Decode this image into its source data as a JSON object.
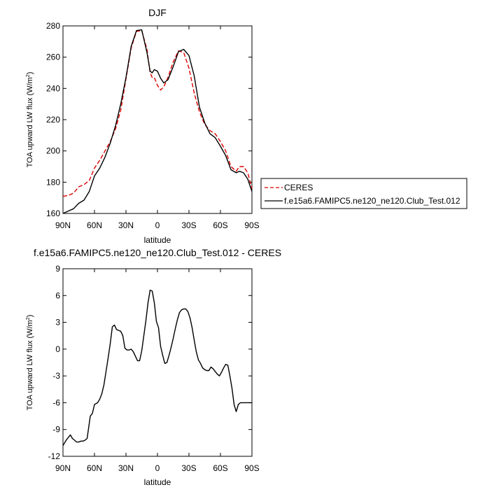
{
  "chart_data": [
    {
      "type": "line",
      "title": "DJF",
      "xlabel": "latitude",
      "ylabel": "TOA upward LW flux (W/m²)",
      "ylabel_main": "TOA upward LW flux (W/m",
      "ylabel_sup": "2",
      "ylabel_end": ")",
      "xlim": [
        90,
        -90
      ],
      "ylim": [
        160,
        280
      ],
      "xticks": [
        90,
        60,
        30,
        0,
        -30,
        -60,
        -90
      ],
      "xtick_labels": [
        "90N",
        "60N",
        "30N",
        "0",
        "30S",
        "60S",
        "90S"
      ],
      "yticks": [
        160,
        180,
        200,
        220,
        240,
        260,
        280
      ],
      "ytick_labels": [
        "160",
        "180",
        "200",
        "220",
        "240",
        "260",
        "280"
      ],
      "grid": false,
      "legend_position": "outside-right",
      "series": [
        {
          "name": "CERES",
          "color": "#dd0000",
          "style": "dashed",
          "x": [
            90,
            85,
            80,
            75,
            70,
            65,
            60,
            55,
            50,
            45,
            40,
            35,
            30,
            25,
            20,
            15,
            10,
            7,
            5,
            3,
            0,
            -3,
            -6,
            -10,
            -15,
            -20,
            -25,
            -30,
            -35,
            -40,
            -45,
            -50,
            -55,
            -60,
            -65,
            -70,
            -75,
            -78,
            -82,
            -86,
            -90
          ],
          "values": [
            171,
            171.5,
            173,
            177,
            178.5,
            181,
            189,
            194,
            200,
            206,
            214,
            226,
            246,
            266,
            276.5,
            277,
            265,
            250,
            247,
            247,
            242,
            239,
            241,
            247,
            257,
            264,
            263,
            253,
            237,
            225,
            217,
            213,
            211,
            206,
            200,
            190,
            187,
            190,
            190,
            186,
            176
          ]
        },
        {
          "name": "f.e15a6.FAMIPC5.ne120_ne120.Club_Test.012",
          "color": "#000000",
          "style": "solid",
          "x": [
            90,
            85,
            80,
            75,
            70,
            65,
            60,
            55,
            50,
            45,
            40,
            35,
            30,
            25,
            20,
            15,
            10,
            7,
            5,
            3,
            0,
            -3,
            -6,
            -10,
            -15,
            -20,
            -25,
            -30,
            -35,
            -40,
            -45,
            -50,
            -55,
            -60,
            -65,
            -70,
            -75,
            -78,
            -82,
            -86,
            -90
          ],
          "values": [
            160,
            161.5,
            163,
            166.5,
            168.5,
            174,
            184,
            189,
            196,
            205,
            216,
            230,
            247,
            267,
            277,
            277.5,
            263,
            251,
            250,
            252,
            251,
            246.5,
            243.5,
            245.5,
            254,
            263.5,
            265,
            261,
            248,
            228,
            218,
            211,
            208.5,
            203,
            197,
            188,
            186,
            187,
            186,
            182,
            174
          ]
        }
      ]
    },
    {
      "type": "line",
      "title": "f.e15a6.FAMIPC5.ne120_ne120.Club_Test.012 - CERES",
      "xlabel": "latitude",
      "ylabel": "TOA upward LW flux (W/m²)",
      "ylabel_main": "TOA upward LW flux (W/m",
      "ylabel_sup": "2",
      "ylabel_end": ")",
      "xlim": [
        90,
        -90
      ],
      "ylim": [
        -12,
        9
      ],
      "xticks": [
        90,
        60,
        30,
        0,
        -30,
        -60,
        -90
      ],
      "xtick_labels": [
        "90N",
        "60N",
        "30N",
        "0",
        "30S",
        "60S",
        "90S"
      ],
      "yticks": [
        9,
        6,
        3,
        0,
        -3,
        -6,
        -9,
        -12
      ],
      "ytick_labels": [
        "9",
        "6",
        "3",
        "0",
        "-3",
        "-6",
        "-9",
        "-12"
      ],
      "grid": false,
      "series": [
        {
          "name": "f.e15a6.FAMIPC5.ne120_ne120.Club_Test.012 - CERES",
          "color": "#000000",
          "style": "solid",
          "x": [
            90,
            87,
            85,
            83,
            81,
            79,
            77,
            75,
            73,
            71,
            69,
            67,
            64,
            62,
            60,
            57,
            55,
            53,
            51,
            49,
            47,
            45,
            43,
            41,
            39,
            37,
            35,
            33,
            31,
            29,
            27,
            25,
            23,
            21,
            19,
            17,
            15,
            13,
            11,
            9,
            7,
            5,
            3,
            1,
            -1,
            -3,
            -5,
            -7,
            -9,
            -11,
            -13,
            -15,
            -17,
            -19,
            -21,
            -23,
            -25,
            -27,
            -29,
            -31,
            -33,
            -35,
            -37,
            -39,
            -41,
            -43,
            -45,
            -47,
            -49,
            -51,
            -53,
            -55,
            -57,
            -59,
            -61,
            -63,
            -65,
            -67,
            -69,
            -71,
            -73,
            -75,
            -77,
            -79,
            -81,
            -83,
            -85,
            -87,
            -89,
            -90
          ],
          "values": [
            -10.8,
            -10.2,
            -9.9,
            -9.6,
            -10,
            -10.2,
            -10.4,
            -10.4,
            -10.3,
            -10.3,
            -10.2,
            -10,
            -7.5,
            -7.2,
            -6.2,
            -6,
            -5.6,
            -5,
            -4,
            -2.5,
            -1,
            0.6,
            2.5,
            2.7,
            2.2,
            2.1,
            2,
            1.5,
            0.1,
            -0.1,
            -0.1,
            0,
            -0.3,
            -0.8,
            -1.3,
            -1.3,
            -0.2,
            1.5,
            3.2,
            5.2,
            6.6,
            6.5,
            5.2,
            3.1,
            2.4,
            0.3,
            -0.7,
            -1.6,
            -1.5,
            -0.7,
            0.2,
            1.2,
            2.3,
            3.3,
            4.1,
            4.4,
            4.5,
            4.5,
            4.2,
            3.5,
            2.4,
            1,
            -0.3,
            -1.2,
            -1.6,
            -2.1,
            -2.3,
            -2.4,
            -2.4,
            -2,
            -2.2,
            -2.5,
            -2.8,
            -3,
            -2.6,
            -2.1,
            -1.7,
            -1.8,
            -3,
            -4.4,
            -6.2,
            -7,
            -6.2,
            -6.0,
            -6.0,
            -6.0,
            -6.0,
            -6.0,
            -6.0,
            -6.0
          ]
        }
      ]
    }
  ]
}
